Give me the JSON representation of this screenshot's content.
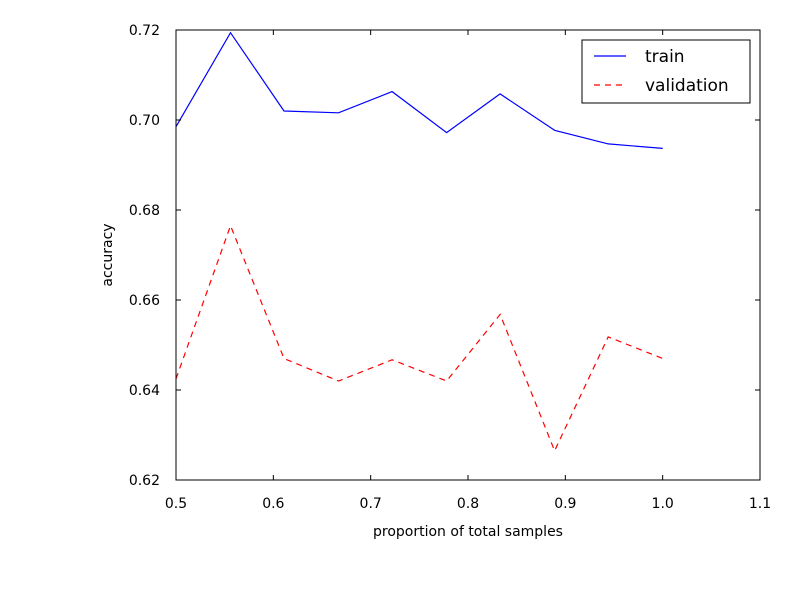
{
  "chart_data": {
    "type": "line",
    "title": "",
    "xlabel": "proportion of total samples",
    "ylabel": "accuracy",
    "xlim": [
      0.5,
      1.1
    ],
    "ylim": [
      0.62,
      0.72
    ],
    "xticks": [
      "0.5",
      "0.6",
      "0.7",
      "0.8",
      "0.9",
      "1.0",
      "1.1"
    ],
    "yticks": [
      "0.62",
      "0.64",
      "0.66",
      "0.68",
      "0.70",
      "0.72"
    ],
    "grid": false,
    "legend_position": "top-right",
    "x": [
      0.5,
      0.556,
      0.611,
      0.667,
      0.722,
      0.778,
      0.833,
      0.889,
      0.944,
      1.0
    ],
    "series": [
      {
        "name": "train",
        "color": "#0000ff",
        "style": "solid",
        "values": [
          0.6985,
          0.7194,
          0.702,
          0.7016,
          0.7063,
          0.6972,
          0.7058,
          0.6977,
          0.6947,
          0.6937
        ]
      },
      {
        "name": "validation",
        "color": "#ff0000",
        "style": "dashed",
        "values": [
          0.6425,
          0.6765,
          0.647,
          0.642,
          0.6467,
          0.642,
          0.6568,
          0.6265,
          0.6518,
          0.647
        ]
      }
    ]
  }
}
